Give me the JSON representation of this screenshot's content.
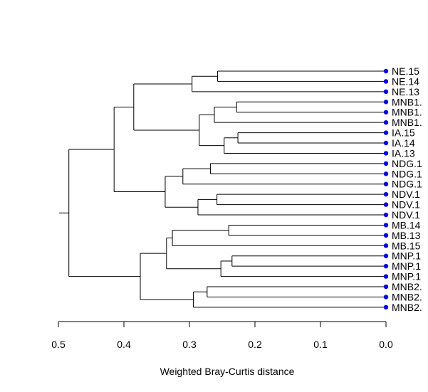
{
  "chart_data": {
    "type": "dendrogram",
    "orientation": "horizontal",
    "xlabel": "Weighted Bray-Curtis distance",
    "x_ticks": [
      "0.5",
      "0.4",
      "0.3",
      "0.2",
      "0.1",
      "0.0"
    ],
    "x_tick_values": [
      0.5,
      0.4,
      0.3,
      0.2,
      0.1,
      0.0
    ],
    "xlim": [
      0.5,
      0.0
    ],
    "tip_marker_color": "#0000ff",
    "tips": [
      "NE.15",
      "NE.14",
      "NE.13",
      "MNB1.",
      "MNB1.",
      "MNB1.",
      "IA.15",
      "IA.14",
      "IA.13",
      "NDG.1",
      "NDG.1",
      "NDG.1",
      "NDV.1",
      "NDV.1",
      "NDV.1",
      "MB.14",
      "MB.13",
      "MB.15",
      "MNP.1",
      "MNP.1",
      "MNP.1",
      "MNB2.",
      "MNB2.",
      "MNB2."
    ],
    "merges": [
      {
        "id": "n1",
        "children": [
          "t0",
          "t1"
        ],
        "height": 0.257
      },
      {
        "id": "n2",
        "children": [
          "n1",
          "t2"
        ],
        "height": 0.296
      },
      {
        "id": "n3",
        "children": [
          "t3",
          "t4"
        ],
        "height": 0.228
      },
      {
        "id": "n4",
        "children": [
          "n3",
          "t5"
        ],
        "height": 0.262
      },
      {
        "id": "n5",
        "children": [
          "t6",
          "t7"
        ],
        "height": 0.226
      },
      {
        "id": "n6",
        "children": [
          "n5",
          "t8"
        ],
        "height": 0.247
      },
      {
        "id": "n7",
        "children": [
          "n4",
          "n6"
        ],
        "height": 0.285
      },
      {
        "id": "n8",
        "children": [
          "n2",
          "n7"
        ],
        "height": 0.385
      },
      {
        "id": "n9",
        "children": [
          "t9",
          "t10"
        ],
        "height": 0.268
      },
      {
        "id": "n10",
        "children": [
          "n9",
          "t11"
        ],
        "height": 0.31
      },
      {
        "id": "n11",
        "children": [
          "t12",
          "t13"
        ],
        "height": 0.258
      },
      {
        "id": "n12",
        "children": [
          "n11",
          "t14"
        ],
        "height": 0.287
      },
      {
        "id": "n13",
        "children": [
          "n10",
          "n12"
        ],
        "height": 0.337
      },
      {
        "id": "n14",
        "children": [
          "n8",
          "n13"
        ],
        "height": 0.415
      },
      {
        "id": "n15",
        "children": [
          "t15",
          "t16"
        ],
        "height": 0.24
      },
      {
        "id": "n16",
        "children": [
          "n15",
          "t17"
        ],
        "height": 0.326
      },
      {
        "id": "n17",
        "children": [
          "t18",
          "t19"
        ],
        "height": 0.235
      },
      {
        "id": "n18",
        "children": [
          "n17",
          "t20"
        ],
        "height": 0.252
      },
      {
        "id": "n19",
        "children": [
          "n16",
          "n18"
        ],
        "height": 0.335
      },
      {
        "id": "n20",
        "children": [
          "t21",
          "t22"
        ],
        "height": 0.273
      },
      {
        "id": "n21",
        "children": [
          "n20",
          "t23"
        ],
        "height": 0.294
      },
      {
        "id": "n22",
        "children": [
          "n19",
          "n21"
        ],
        "height": 0.375
      },
      {
        "id": "n23",
        "children": [
          "n14",
          "n22"
        ],
        "height": 0.484
      }
    ]
  }
}
